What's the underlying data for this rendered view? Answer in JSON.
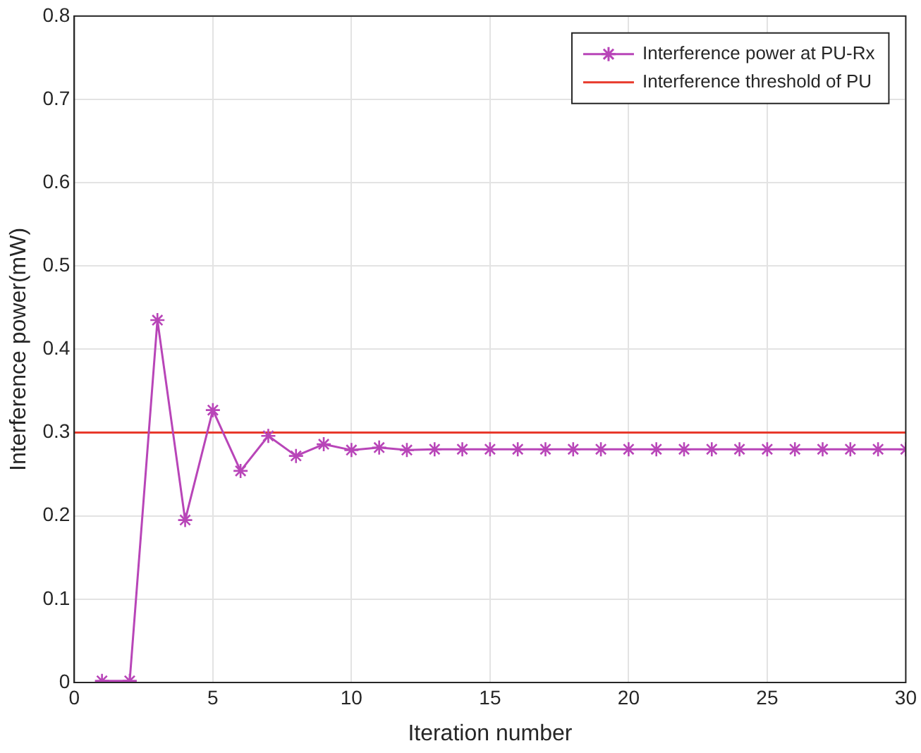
{
  "chart_data": {
    "type": "line",
    "xlabel": "Iteration number",
    "ylabel": "Interference power(mW)",
    "x": [
      1,
      2,
      3,
      4,
      5,
      6,
      7,
      8,
      9,
      10,
      11,
      12,
      13,
      14,
      15,
      16,
      17,
      18,
      19,
      20,
      21,
      22,
      23,
      24,
      25,
      26,
      27,
      28,
      29,
      30
    ],
    "series": [
      {
        "name": "Interference power at PU-Rx",
        "color": "#b845b8",
        "values": [
          0.002,
          0.002,
          0.435,
          0.195,
          0.327,
          0.254,
          0.296,
          0.272,
          0.286,
          0.279,
          0.282,
          0.279,
          0.28,
          0.28,
          0.28,
          0.28,
          0.28,
          0.28,
          0.28,
          0.28,
          0.28,
          0.28,
          0.28,
          0.28,
          0.28,
          0.28,
          0.28,
          0.28,
          0.28,
          0.28
        ]
      }
    ],
    "ref_lines": [
      {
        "axis": "y",
        "value": 0.3,
        "label": "Interference threshold of PU",
        "color": "#e8392b"
      }
    ],
    "xlim": [
      0,
      30
    ],
    "xticks": [
      0,
      5,
      10,
      15,
      20,
      25,
      30
    ],
    "ylim": [
      0,
      0.8
    ],
    "yticks": [
      0,
      0.1,
      0.2,
      0.3,
      0.4,
      0.5,
      0.6,
      0.7,
      0.8
    ],
    "grid": true,
    "legend": "top right",
    "marker": "cross",
    "line_style": "solid"
  }
}
